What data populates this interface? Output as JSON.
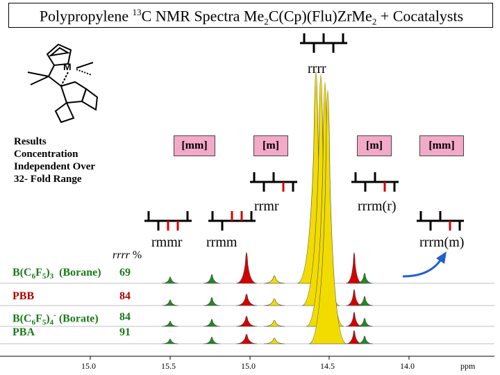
{
  "title": {
    "part1": "Polypropylene ",
    "isotope": "13",
    "part2": "C NMR Spectra Me",
    "sub1": "2",
    "part3": "C(Cp)(Flu)Zr",
    "part4": "Me",
    "sub2": "2",
    "part5": " + Cocatalysts"
  },
  "structure": {
    "metal_label": "M"
  },
  "results_note": [
    "Results",
    "Concentration",
    "Independent Over",
    "32- Fold Range"
  ],
  "pentads": {
    "rrrr": "rrrr",
    "rrmr": "rrmr",
    "rrrm_r": "rrrm(r)",
    "rmmr": "rmmr",
    "rrmm": "rrmm",
    "rrrm_m": "rrrm(m)"
  },
  "tags": [
    "[mm]",
    "[m]",
    "[m]",
    "[mm]"
  ],
  "rrrr_header": {
    "italic": "rrrr",
    "unit": "%"
  },
  "cocatalysts": [
    {
      "name": "B(C6F5)3 (Borane)",
      "value": "69"
    },
    {
      "name": "PBB",
      "value": "84"
    },
    {
      "name": "B(C6F5)4- (Borate)",
      "value": "84"
    },
    {
      "name": "PBA",
      "value": "91"
    }
  ],
  "cocat_colors": [
    "#1a7a1a",
    "#b00000",
    "#1a7a1a",
    "#1a7a1a"
  ],
  "x_axis": {
    "ticks": [
      "15.0",
      "15.5",
      "15.0",
      "14.5",
      "14.0"
    ],
    "unit": "ppm"
  },
  "colors": {
    "tag_fill": "#f3a9c8",
    "peak_yellow": "#f2dc00",
    "peak_red": "#d40000",
    "peak_green": "#1f8a1f",
    "arrow_blue": "#1f5fd0"
  }
}
